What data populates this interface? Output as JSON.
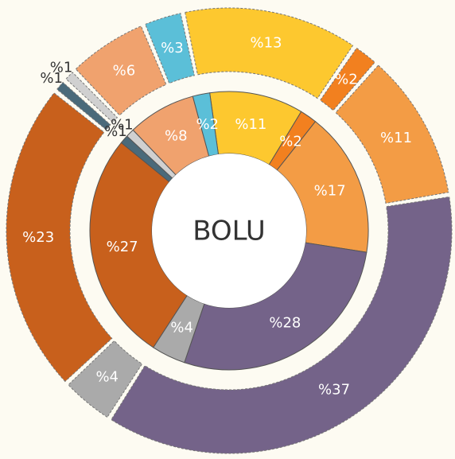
{
  "chart_data": {
    "type": "donut",
    "title": "BOLU",
    "colors": [
      "#fdc82f",
      "#f2801f",
      "#f39c45",
      "#746389",
      "#aaaaaa",
      "#c8601c",
      "#4a6a7a",
      "#d0d0d0",
      "#f0a26e",
      "#5bbfd8"
    ],
    "series": [
      {
        "name": null,
        "values": [
          11,
          2,
          17,
          28,
          4,
          27,
          1,
          1,
          8,
          2
        ],
        "value_labels": [
          "%11",
          "%2",
          "%17",
          "%28",
          "%4",
          "%27",
          "%1",
          "%1",
          "%8",
          "%2"
        ]
      },
      {
        "name": null,
        "values": [
          13,
          2,
          11,
          37,
          4,
          23,
          1,
          1,
          6,
          3
        ],
        "value_labels": [
          "%13",
          "%2",
          "%11",
          "%37",
          "%4",
          "%23",
          "%1",
          "%1",
          "%6",
          "%3"
        ]
      }
    ]
  }
}
